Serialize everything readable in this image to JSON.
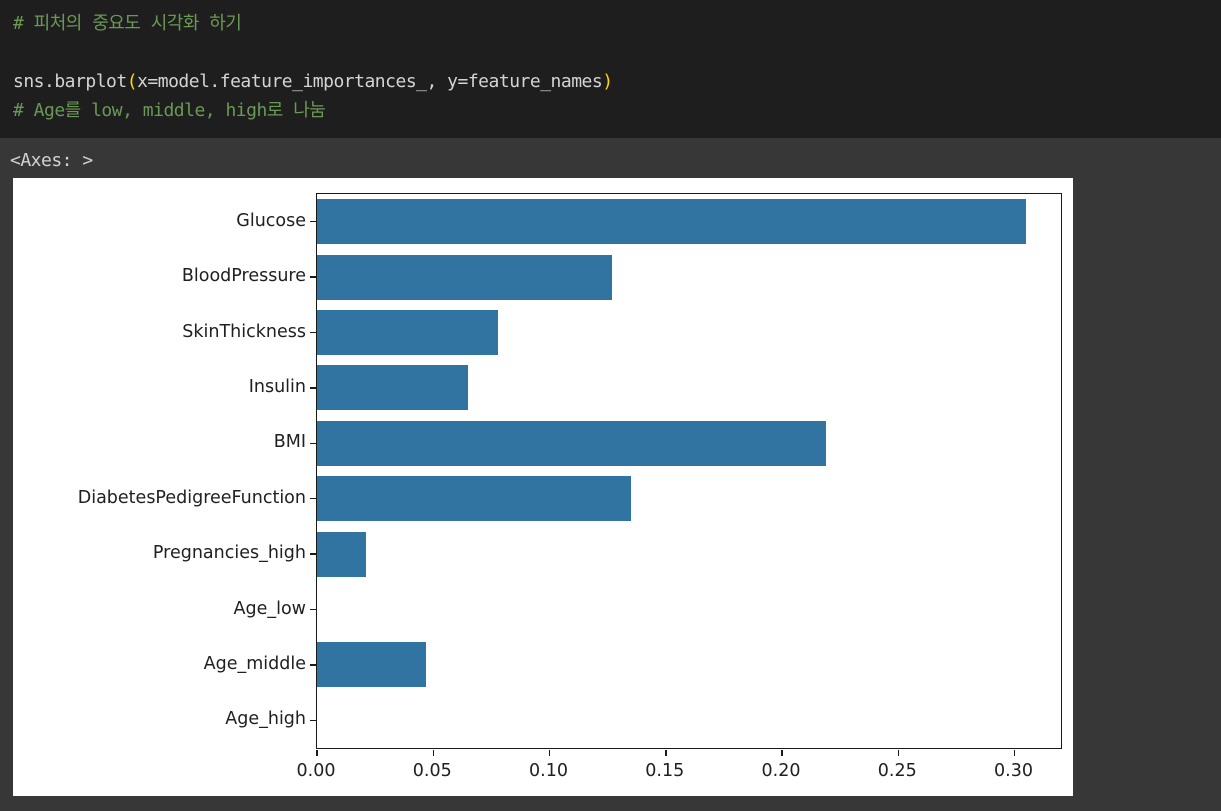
{
  "code_cell": {
    "comment1": "# 피처의 중요도 시각화 하기",
    "code_func": "sns.barplot",
    "paren_open": "(",
    "code_args": "x=model.feature_importances_, y=feature_names",
    "paren_close": ")",
    "comment2": "# Age를 low, middle, high로 나눔",
    "colors": {
      "background": "#1e1e1e",
      "comment": "#6a9955",
      "code_text": "#d4d4d4",
      "bracket": "#ffd700"
    }
  },
  "output": {
    "repr_text": "<Axes: >",
    "background": "#373737",
    "text_color": "#d2d2d2"
  },
  "chart_data": {
    "type": "bar",
    "orientation": "horizontal",
    "title": "",
    "xlabel": "",
    "ylabel": "",
    "grid": false,
    "legend": "none",
    "bar_color": "#3274a1",
    "figure_background": "#ffffff",
    "spine_color": "#1a1a1a",
    "categories": [
      "Glucose",
      "BloodPressure",
      "SkinThickness",
      "Insulin",
      "BMI",
      "DiabetesPedigreeFunction",
      "Pregnancies_high",
      "Age_low",
      "Age_middle",
      "Age_high"
    ],
    "values": [
      0.305,
      0.127,
      0.078,
      0.065,
      0.219,
      0.135,
      0.021,
      0.0,
      0.047,
      0.0
    ],
    "xlim": [
      0,
      0.32
    ],
    "x_ticks": [
      0.0,
      0.05,
      0.1,
      0.15,
      0.2,
      0.25,
      0.3
    ],
    "x_tick_labels": [
      "0.00",
      "0.05",
      "0.10",
      "0.15",
      "0.20",
      "0.25",
      "0.30"
    ]
  }
}
